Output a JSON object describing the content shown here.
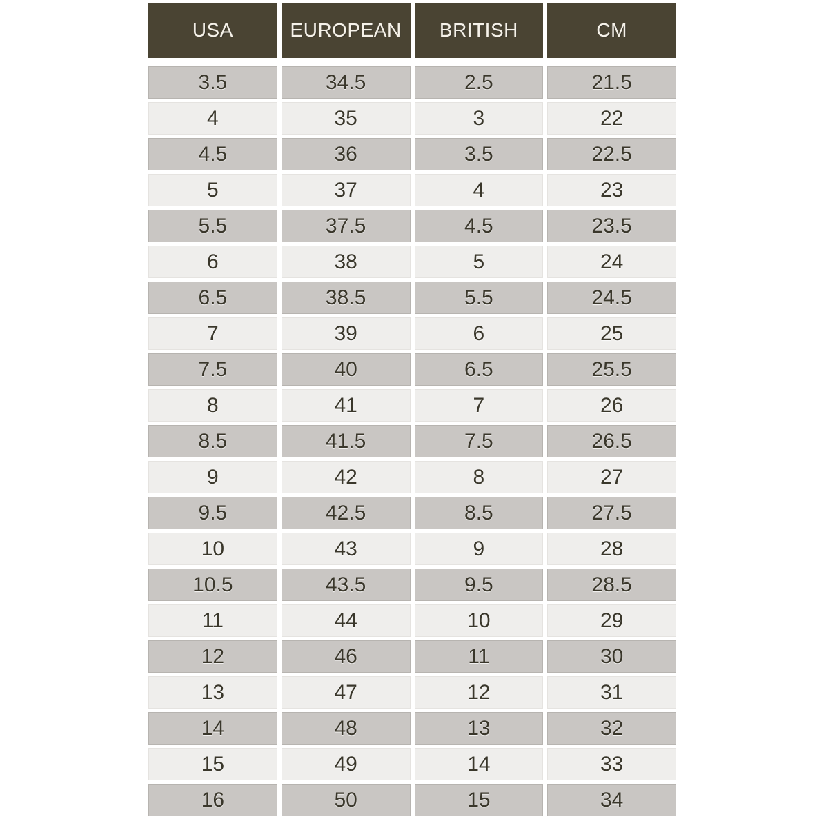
{
  "chart_data": {
    "type": "table",
    "columns": [
      "USA",
      "EUROPEAN",
      "BRITISH",
      "CM"
    ],
    "rows": [
      [
        "3.5",
        "34.5",
        "2.5",
        "21.5"
      ],
      [
        "4",
        "35",
        "3",
        "22"
      ],
      [
        "4.5",
        "36",
        "3.5",
        "22.5"
      ],
      [
        "5",
        "37",
        "4",
        "23"
      ],
      [
        "5.5",
        "37.5",
        "4.5",
        "23.5"
      ],
      [
        "6",
        "38",
        "5",
        "24"
      ],
      [
        "6.5",
        "38.5",
        "5.5",
        "24.5"
      ],
      [
        "7",
        "39",
        "6",
        "25"
      ],
      [
        "7.5",
        "40",
        "6.5",
        "25.5"
      ],
      [
        "8",
        "41",
        "7",
        "26"
      ],
      [
        "8.5",
        "41.5",
        "7.5",
        "26.5"
      ],
      [
        "9",
        "42",
        "8",
        "27"
      ],
      [
        "9.5",
        "42.5",
        "8.5",
        "27.5"
      ],
      [
        "10",
        "43",
        "9",
        "28"
      ],
      [
        "10.5",
        "43.5",
        "9.5",
        "28.5"
      ],
      [
        "11",
        "44",
        "10",
        "29"
      ],
      [
        "12",
        "46",
        "11",
        "30"
      ],
      [
        "13",
        "47",
        "12",
        "31"
      ],
      [
        "14",
        "48",
        "13",
        "32"
      ],
      [
        "15",
        "49",
        "14",
        "33"
      ],
      [
        "16",
        "50",
        "15",
        "34"
      ]
    ],
    "layout": {
      "stripe_pattern": "first_row_dark_alternating",
      "grid": "white_gutters_between_cells",
      "legend": "none"
    }
  },
  "colors": {
    "header_bg": "#4a4433",
    "header_text": "#f6f2e9",
    "row_dark": "#c9c6c3",
    "row_dark_border": "#b7b4b0",
    "row_light": "#efeeec",
    "row_light_border": "#e5e3e0",
    "cell_text": "#3a372b",
    "page_bg": "#ffffff"
  }
}
